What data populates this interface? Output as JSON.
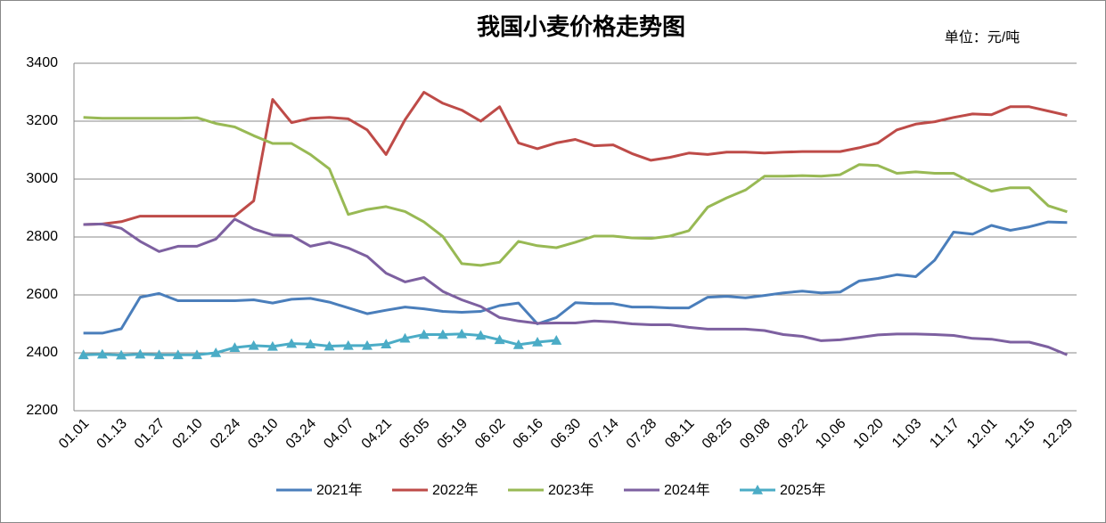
{
  "chart_data": {
    "type": "line",
    "title": "我国小麦价格走势图",
    "unit_note": "单位：元/吨",
    "categories": [
      "01.01",
      null,
      "01.13",
      null,
      "01.27",
      null,
      "02.10",
      null,
      "02.24",
      null,
      "03.10",
      null,
      "03.24",
      null,
      "04.07",
      null,
      "04.21",
      null,
      "05.05",
      null,
      "05.19",
      null,
      "06.02",
      null,
      "06.16",
      null,
      "06.30",
      null,
      "07.14",
      null,
      "07.28",
      null,
      "08.11",
      null,
      "08.25",
      null,
      "09.08",
      null,
      "09.22",
      null,
      "10.06",
      null,
      "10.20",
      null,
      "11.03",
      null,
      "11.17",
      null,
      "12.01",
      null,
      "12.15",
      null,
      "12.29"
    ],
    "ylim": [
      2200,
      3400
    ],
    "yticks": [
      2200,
      2400,
      2600,
      2800,
      3000,
      3200,
      3400
    ],
    "grid": true,
    "series": [
      {
        "name": "2021年",
        "color": "#4a7ebb",
        "values": [
          2468,
          2468,
          2483,
          2592,
          2605,
          2580,
          2580,
          2580,
          2580,
          2583,
          2572,
          2585,
          2588,
          2575,
          2555,
          2535,
          2547,
          2558,
          2552,
          2543,
          2540,
          2543,
          2563,
          2572,
          2500,
          2522,
          2573,
          2570,
          2570,
          2558,
          2558,
          2555,
          2555,
          2592,
          2595,
          2590,
          2598,
          2607,
          2613,
          2607,
          2610,
          2648,
          2657,
          2670,
          2663,
          2720,
          2817,
          2810,
          2840,
          2823,
          2835,
          2852,
          2850
        ]
      },
      {
        "name": "2022年",
        "color": "#be4b48",
        "values": [
          2843,
          2845,
          2853,
          2872,
          2872,
          2872,
          2872,
          2872,
          2872,
          2925,
          3275,
          3195,
          3210,
          3213,
          3208,
          3170,
          3085,
          3205,
          3300,
          3262,
          3238,
          3200,
          3250,
          3125,
          3105,
          3125,
          3137,
          3115,
          3118,
          3088,
          3065,
          3075,
          3090,
          3085,
          3093,
          3093,
          3090,
          3093,
          3095,
          3095,
          3095,
          3108,
          3125,
          3170,
          3190,
          3198,
          3213,
          3225,
          3222,
          3250,
          3250,
          3235,
          3220
        ]
      },
      {
        "name": "2023年",
        "color": "#98b954",
        "values": [
          3213,
          3210,
          3210,
          3210,
          3210,
          3210,
          3212,
          3192,
          3180,
          3150,
          3123,
          3123,
          3085,
          3035,
          2878,
          2895,
          2905,
          2888,
          2852,
          2802,
          2708,
          2702,
          2713,
          2785,
          2770,
          2763,
          2782,
          2803,
          2803,
          2797,
          2795,
          2803,
          2822,
          2903,
          2935,
          2962,
          3010,
          3010,
          3012,
          3010,
          3015,
          3050,
          3047,
          3020,
          3025,
          3020,
          3020,
          2987,
          2958,
          2970,
          2970,
          2908,
          2887
        ]
      },
      {
        "name": "2024年",
        "color": "#7d60a0",
        "values": [
          2843,
          2845,
          2830,
          2785,
          2750,
          2768,
          2768,
          2793,
          2862,
          2828,
          2807,
          2805,
          2768,
          2782,
          2762,
          2733,
          2675,
          2645,
          2660,
          2612,
          2583,
          2560,
          2522,
          2510,
          2502,
          2503,
          2503,
          2510,
          2507,
          2500,
          2497,
          2497,
          2488,
          2482,
          2482,
          2482,
          2477,
          2463,
          2457,
          2442,
          2445,
          2453,
          2462,
          2465,
          2465,
          2463,
          2460,
          2450,
          2447,
          2437,
          2437,
          2420,
          2393
        ]
      },
      {
        "name": "2025年",
        "color": "#4bacc6",
        "marker": "triangle",
        "values": [
          2393,
          2395,
          2392,
          2395,
          2393,
          2393,
          2393,
          2400,
          2418,
          2425,
          2422,
          2432,
          2430,
          2423,
          2425,
          2425,
          2430,
          2450,
          2463,
          2463,
          2465,
          2460,
          2445,
          2428,
          2437,
          2443,
          null,
          null,
          null,
          null,
          null,
          null,
          null,
          null,
          null,
          null,
          null,
          null,
          null,
          null,
          null,
          null,
          null,
          null,
          null,
          null,
          null,
          null,
          null,
          null,
          null,
          null,
          null
        ]
      }
    ]
  }
}
